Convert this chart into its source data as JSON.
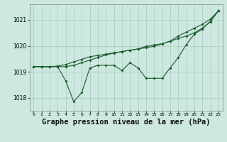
{
  "background_color": "#cce8e0",
  "grid_color": "#aaccbb",
  "line_color": "#1a5c2a",
  "title": "Graphe pression niveau de la mer (hPa)",
  "title_fontsize": 7.5,
  "ylim": [
    1017.5,
    1021.6
  ],
  "xlim": [
    -0.5,
    23.5
  ],
  "yticks": [
    1018,
    1019,
    1020,
    1021
  ],
  "ytick_labels": [
    "1018",
    "1019",
    "1020",
    "1021"
  ],
  "xticks": [
    0,
    1,
    2,
    3,
    4,
    5,
    6,
    7,
    8,
    9,
    10,
    11,
    12,
    13,
    14,
    15,
    16,
    17,
    18,
    19,
    20,
    21,
    22,
    23
  ],
  "series1": [
    1019.2,
    1019.2,
    1019.2,
    1019.2,
    1018.65,
    1017.85,
    1018.2,
    1019.15,
    1019.25,
    1019.25,
    1019.25,
    1019.05,
    1019.35,
    1019.15,
    1018.75,
    1018.75,
    1018.75,
    1019.15,
    1019.55,
    1020.05,
    1020.45,
    1020.65,
    1020.95,
    1021.35
  ],
  "series2": [
    1019.2,
    1019.2,
    1019.2,
    1019.2,
    1019.2,
    1019.25,
    1019.35,
    1019.45,
    1019.55,
    1019.65,
    1019.72,
    1019.78,
    1019.83,
    1019.88,
    1019.93,
    1019.98,
    1020.08,
    1020.18,
    1020.28,
    1020.38,
    1020.5,
    1020.68,
    1020.93,
    1021.35
  ],
  "series3": [
    1019.2,
    1019.2,
    1019.2,
    1019.22,
    1019.28,
    1019.38,
    1019.48,
    1019.58,
    1019.63,
    1019.68,
    1019.73,
    1019.78,
    1019.83,
    1019.88,
    1019.98,
    1020.03,
    1020.08,
    1020.18,
    1020.38,
    1020.53,
    1020.68,
    1020.83,
    1021.03,
    1021.35
  ]
}
